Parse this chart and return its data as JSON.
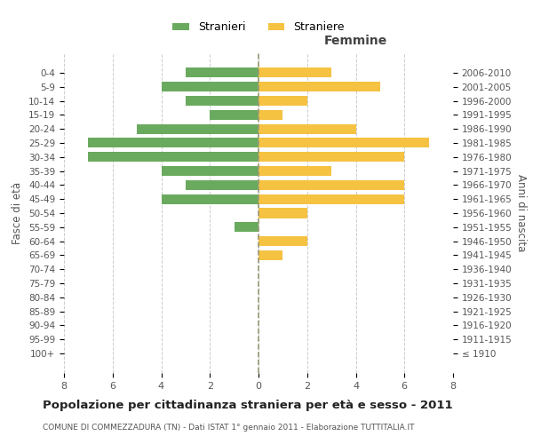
{
  "age_groups": [
    "100+",
    "95-99",
    "90-94",
    "85-89",
    "80-84",
    "75-79",
    "70-74",
    "65-69",
    "60-64",
    "55-59",
    "50-54",
    "45-49",
    "40-44",
    "35-39",
    "30-34",
    "25-29",
    "20-24",
    "15-19",
    "10-14",
    "5-9",
    "0-4"
  ],
  "birth_years": [
    "≤ 1910",
    "1911-1915",
    "1916-1920",
    "1921-1925",
    "1926-1930",
    "1931-1935",
    "1936-1940",
    "1941-1945",
    "1946-1950",
    "1951-1955",
    "1956-1960",
    "1961-1965",
    "1966-1970",
    "1971-1975",
    "1976-1980",
    "1981-1985",
    "1986-1990",
    "1991-1995",
    "1996-2000",
    "2001-2005",
    "2006-2010"
  ],
  "males": [
    0,
    0,
    0,
    0,
    0,
    0,
    0,
    0,
    0,
    1,
    0,
    4,
    3,
    4,
    7,
    7,
    5,
    2,
    3,
    4,
    3
  ],
  "females": [
    0,
    0,
    0,
    0,
    0,
    0,
    0,
    1,
    2,
    0,
    2,
    6,
    6,
    3,
    6,
    7,
    4,
    1,
    2,
    5,
    3
  ],
  "male_color": "#6aaa5e",
  "female_color": "#f5c242",
  "background_color": "#ffffff",
  "grid_color": "#cccccc",
  "title": "Popolazione per cittadinanza straniera per età e sesso - 2011",
  "subtitle": "COMUNE DI COMMEZZADURA (TN) - Dati ISTAT 1° gennaio 2011 - Elaborazione TUTTITALIA.IT",
  "xlabel_right": "Femmine",
  "ylabel_left": "Fasce di età",
  "ylabel_right": "Anni di nascita",
  "legend_males": "Stranieri",
  "legend_females": "Straniere",
  "xlim": 8,
  "center_line_color": "#999977"
}
